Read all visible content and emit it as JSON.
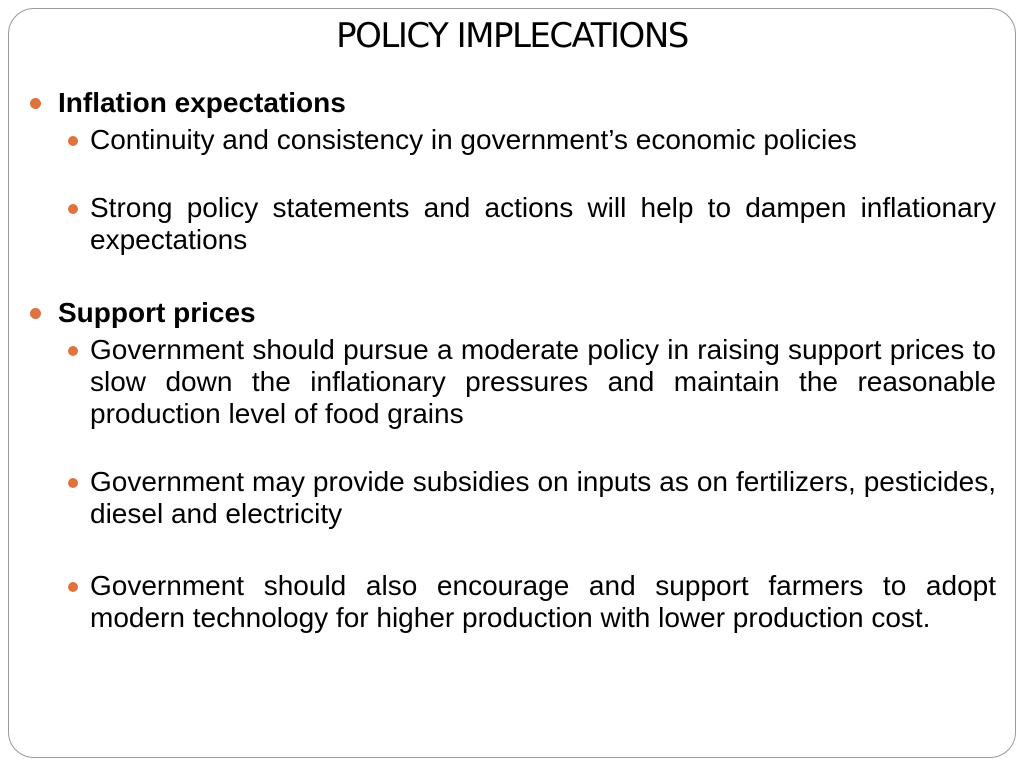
{
  "slide": {
    "title": "POLICY IMPLECATIONS",
    "accent_color": "#e0733c",
    "sections": [
      {
        "heading": "Inflation expectations",
        "points": [
          "Continuity and consistency in government’s economic policies",
          "Strong policy statements and actions will help to dampen inflationary expectations"
        ]
      },
      {
        "heading": "Support prices",
        "points": [
          "Government should pursue a moderate policy in raising support prices to slow down the inflationary pressures and maintain the reasonable production level of food grains",
          "Government may provide subsidies on inputs as on fertilizers, pesticides, diesel and electricity",
          "Government should also encourage and support farmers to adopt modern technology for higher production with lower production cost."
        ]
      }
    ]
  }
}
